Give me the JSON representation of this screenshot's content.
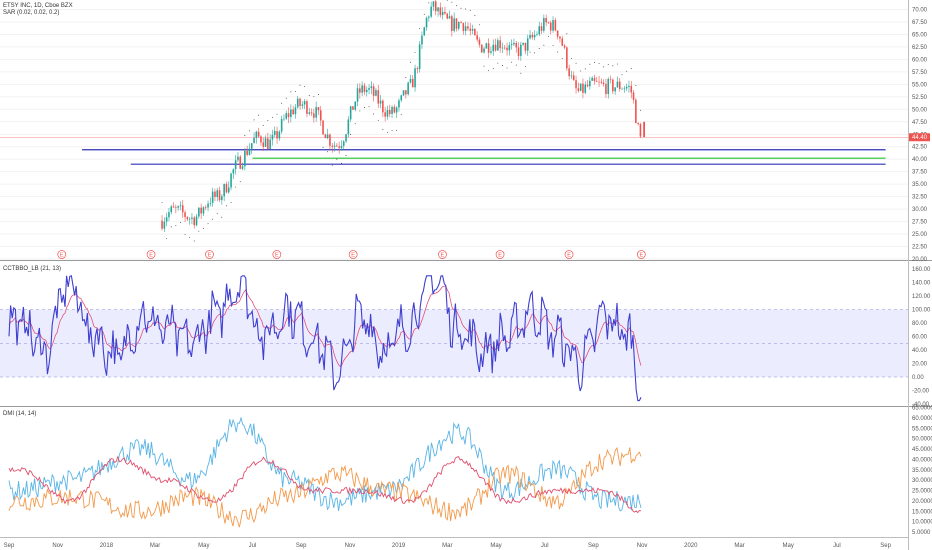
{
  "title": "ETSY INC, 1D, Cboe BZX",
  "indicator_sar": "SAR (0.02, 0.02, 0.2)",
  "indicator_cctbbo": "CCTBBO_LB (21, 13)",
  "indicator_dmi": "DMI (14, 14)",
  "colors": {
    "price_line": "#ef5350",
    "price_label_bg": "#ef5350",
    "support_blue": "#2e32b8",
    "support_green": "#22c02a",
    "osc_line": "#3f3fd0",
    "osc_signal": "#e0507a",
    "osc_band": "#dcdcff",
    "dmi_plus": "#5ab4e6",
    "dmi_minus": "#f39a4c",
    "adx": "#e0506e",
    "candle_up": "#26a69a",
    "candle_down": "#ef5350",
    "earnings": "#ef5350"
  },
  "chart_data": [
    {
      "type": "candlestick",
      "name": "price",
      "title": "ETSY INC, 1D, Cboe BZX",
      "ylim": [
        20,
        72
      ],
      "yticks": [
        "70.00",
        "67.50",
        "65.00",
        "62.50",
        "60.00",
        "57.50",
        "55.00",
        "52.50",
        "50.00",
        "47.50",
        "45.00",
        "42.50",
        "40.00",
        "37.50",
        "35.00",
        "32.50",
        "30.00",
        "27.50",
        "25.00",
        "22.50",
        "20.00"
      ],
      "last_price_label": "44.40",
      "last_price": 44.4,
      "support_lines": [
        {
          "color": "blue",
          "value": 41.9,
          "x_start": "2017-12",
          "x_end": "2020-09"
        },
        {
          "color": "green",
          "value": 40.2,
          "x_start": "2018-07",
          "x_end": "2020-09"
        },
        {
          "color": "blue",
          "value": 39.0,
          "x_start": "2018-02",
          "x_end": "2020-09"
        }
      ],
      "earnings_marker": "E",
      "earnings_dates": [
        "2017-11-06",
        "2018-02-26",
        "2018-05-08",
        "2018-08-01",
        "2018-11-05",
        "2019-02-25",
        "2019-05-06",
        "2019-07-31",
        "2019-10-30"
      ],
      "closes_monthly": [
        {
          "date": "2017-12",
          "close": 20.5
        },
        {
          "date": "2018-01",
          "close": 21.0
        },
        {
          "date": "2018-02",
          "close": 24.0
        },
        {
          "date": "2018-03",
          "close": 28.0
        },
        {
          "date": "2018-04",
          "close": 29.5
        },
        {
          "date": "2018-05",
          "close": 31.0
        },
        {
          "date": "2018-06",
          "close": 40.5
        },
        {
          "date": "2018-07",
          "close": 43.5
        },
        {
          "date": "2018-08",
          "close": 48.5
        },
        {
          "date": "2018-09",
          "close": 51.0
        },
        {
          "date": "2018-10",
          "close": 41.5
        },
        {
          "date": "2018-11",
          "close": 55.0
        },
        {
          "date": "2018-12",
          "close": 49.0
        },
        {
          "date": "2019-01",
          "close": 54.5
        },
        {
          "date": "2019-02",
          "close": 71.0
        },
        {
          "date": "2019-03",
          "close": 66.0
        },
        {
          "date": "2019-04",
          "close": 64.0
        },
        {
          "date": "2019-05",
          "close": 61.5
        },
        {
          "date": "2019-06",
          "close": 64.5
        },
        {
          "date": "2019-07",
          "close": 66.5
        },
        {
          "date": "2019-08",
          "close": 52.5
        },
        {
          "date": "2019-09",
          "close": 56.0
        },
        {
          "date": "2019-10",
          "close": 53.0
        },
        {
          "date": "2019-10-31",
          "close": 44.4
        }
      ]
    },
    {
      "type": "line",
      "name": "CCTBBO_LB (21, 13)",
      "title": "CCTBBO_LB (21, 13)",
      "ylim": [
        -40,
        160
      ],
      "yticks": [
        "160.00",
        "140.00",
        "120.00",
        "100.00",
        "80.00",
        "60.00",
        "40.00",
        "20.00",
        "0.00",
        "-20.00",
        "-40.00"
      ],
      "band": {
        "upper": 100,
        "middle": 50,
        "lower": 0
      },
      "series": [
        {
          "name": "oscillator",
          "values_approx_monthly": [
            {
              "date": "2017-09",
              "value": 80
            },
            {
              "date": "2017-10",
              "value": 40
            },
            {
              "date": "2017-11",
              "value": 140
            },
            {
              "date": "2017-12",
              "value": 60
            },
            {
              "date": "2018-01",
              "value": 30
            },
            {
              "date": "2018-02",
              "value": 90
            },
            {
              "date": "2018-03",
              "value": 70
            },
            {
              "date": "2018-04",
              "value": 50
            },
            {
              "date": "2018-05",
              "value": 90
            },
            {
              "date": "2018-06",
              "value": 140
            },
            {
              "date": "2018-07",
              "value": 60
            },
            {
              "date": "2018-08",
              "value": 100
            },
            {
              "date": "2018-09",
              "value": 60
            },
            {
              "date": "2018-10",
              "value": 10
            },
            {
              "date": "2018-11",
              "value": 90
            },
            {
              "date": "2018-12",
              "value": 40
            },
            {
              "date": "2019-01",
              "value": 80
            },
            {
              "date": "2019-02",
              "value": 150
            },
            {
              "date": "2019-03",
              "value": 70
            },
            {
              "date": "2019-04",
              "value": 40
            },
            {
              "date": "2019-05",
              "value": 60
            },
            {
              "date": "2019-06",
              "value": 100
            },
            {
              "date": "2019-07",
              "value": 60
            },
            {
              "date": "2019-08",
              "value": 20
            },
            {
              "date": "2019-09",
              "value": 90
            },
            {
              "date": "2019-10",
              "value": 60
            },
            {
              "date": "2019-10-31",
              "value": -20
            }
          ]
        }
      ]
    },
    {
      "type": "line",
      "name": "DMI (14, 14)",
      "title": "DMI (14, 14)",
      "ylim": [
        5,
        65
      ],
      "yticks": [
        "65.0000",
        "60.0000",
        "55.0000",
        "50.0000",
        "45.0000",
        "40.0000",
        "35.0000",
        "30.0000",
        "25.0000",
        "20.0000",
        "15.0000",
        "10.0000",
        "5.0000"
      ],
      "series": [
        {
          "name": "DI+",
          "values_approx_monthly": [
            {
              "date": "2017-09",
              "value": 25
            },
            {
              "date": "2017-11",
              "value": 30
            },
            {
              "date": "2018-02",
              "value": 45
            },
            {
              "date": "2018-04",
              "value": 30
            },
            {
              "date": "2018-06",
              "value": 58
            },
            {
              "date": "2018-08",
              "value": 30
            },
            {
              "date": "2018-10",
              "value": 20
            },
            {
              "date": "2018-12",
              "value": 25
            },
            {
              "date": "2019-03",
              "value": 53
            },
            {
              "date": "2019-05",
              "value": 25
            },
            {
              "date": "2019-07",
              "value": 35
            },
            {
              "date": "2019-09",
              "value": 20
            },
            {
              "date": "2019-10-31",
              "value": 20
            }
          ]
        },
        {
          "name": "DI-",
          "values_approx_monthly": [
            {
              "date": "2017-09",
              "value": 20
            },
            {
              "date": "2017-11",
              "value": 22
            },
            {
              "date": "2018-02",
              "value": 15
            },
            {
              "date": "2018-04",
              "value": 22
            },
            {
              "date": "2018-06",
              "value": 12
            },
            {
              "date": "2018-08",
              "value": 22
            },
            {
              "date": "2018-10",
              "value": 33
            },
            {
              "date": "2018-12",
              "value": 25
            },
            {
              "date": "2019-03",
              "value": 15
            },
            {
              "date": "2019-05",
              "value": 33
            },
            {
              "date": "2019-07",
              "value": 20
            },
            {
              "date": "2019-09",
              "value": 40
            },
            {
              "date": "2019-10-31",
              "value": 44
            }
          ]
        },
        {
          "name": "ADX",
          "values_approx_monthly": [
            {
              "date": "2017-09",
              "value": 35
            },
            {
              "date": "2017-11",
              "value": 20
            },
            {
              "date": "2018-01",
              "value": 40
            },
            {
              "date": "2018-03",
              "value": 30
            },
            {
              "date": "2018-05",
              "value": 20
            },
            {
              "date": "2018-07",
              "value": 40
            },
            {
              "date": "2018-09",
              "value": 25
            },
            {
              "date": "2018-11",
              "value": 25
            },
            {
              "date": "2019-01",
              "value": 20
            },
            {
              "date": "2019-03",
              "value": 40
            },
            {
              "date": "2019-05",
              "value": 20
            },
            {
              "date": "2019-07",
              "value": 25
            },
            {
              "date": "2019-09",
              "value": 25
            },
            {
              "date": "2019-10-31",
              "value": 15
            }
          ]
        }
      ]
    }
  ],
  "time_axis": {
    "labels": [
      "Sep",
      "Nov",
      "2018",
      "Mar",
      "May",
      "Jul",
      "Sep",
      "Nov",
      "2019",
      "Mar",
      "May",
      "Jul",
      "Sep",
      "Nov",
      "2020",
      "Mar",
      "May",
      "Jul",
      "Sep"
    ]
  }
}
